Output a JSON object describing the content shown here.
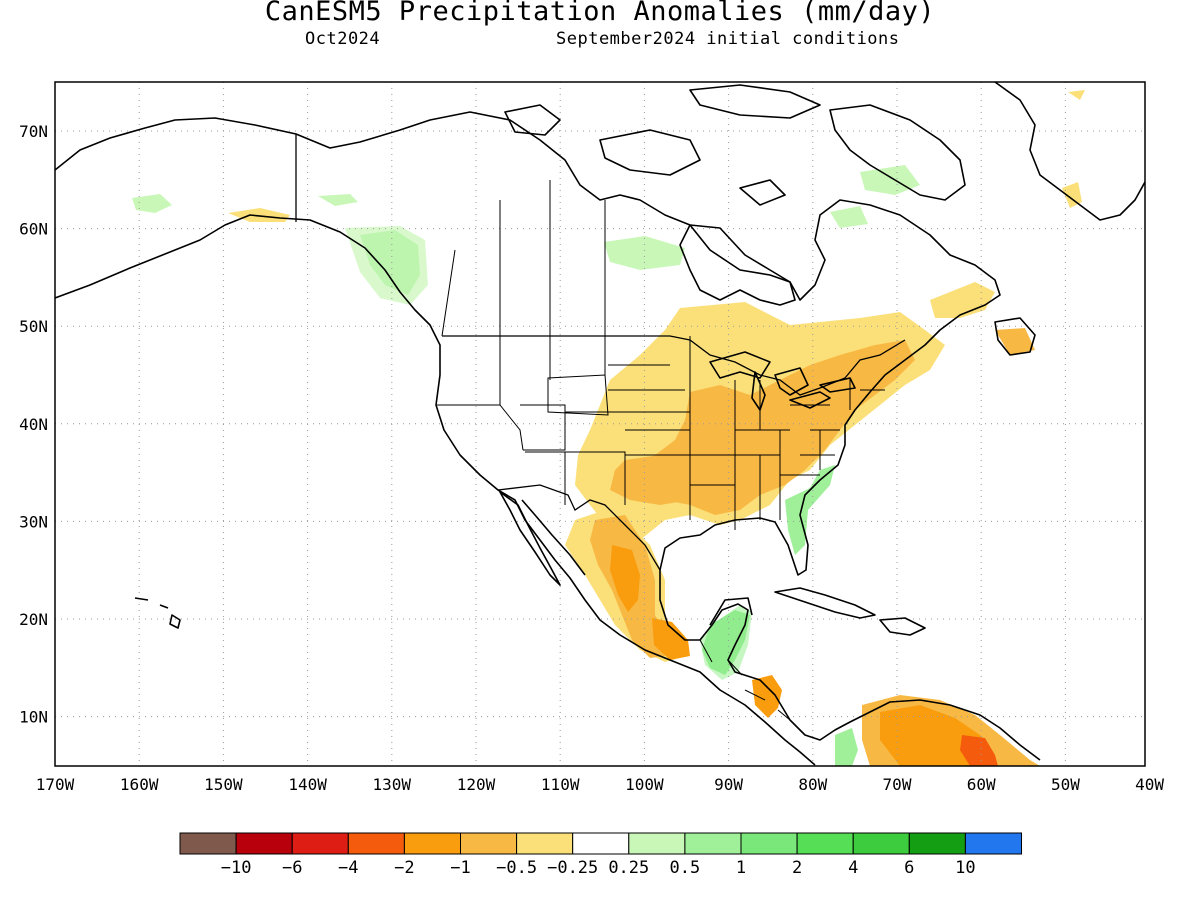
{
  "title": "CanESM5 Precipitation Anomalies (mm/day)",
  "subtitle_left": "Oct2024",
  "subtitle_right": "September2024 initial conditions",
  "axes": {
    "lat_ticks": [
      "70N",
      "60N",
      "50N",
      "40N",
      "30N",
      "20N",
      "10N"
    ],
    "lon_ticks": [
      "170W",
      "160W",
      "150W",
      "140W",
      "130W",
      "120W",
      "110W",
      "100W",
      "90W",
      "80W",
      "70W",
      "60W",
      "50W",
      "40W"
    ],
    "grid": "dotted"
  },
  "colorbar": {
    "colors": [
      "#7f5a4c",
      "#b7000c",
      "#de1d14",
      "#f55b0c",
      "#f99d0e",
      "#f8b944",
      "#fbe07a",
      "#ffffff",
      "#c9f7b8",
      "#a0f09a",
      "#79e779",
      "#56de56",
      "#3dcc3d",
      "#149e14",
      "#2277ee"
    ],
    "labels": [
      "−10",
      "−6",
      "−4",
      "−2",
      "−1",
      "−0.5",
      "−0.25",
      "0.25",
      "0.5",
      "1",
      "2",
      "4",
      "6",
      "10"
    ]
  },
  "anomaly_regions": [
    {
      "name": "central-us-dry",
      "level": "-0.5 to -0.25",
      "color": "#fbe07a"
    },
    {
      "name": "ohio-valley-dry",
      "level": "-1 to -0.5",
      "color": "#f8b944"
    },
    {
      "name": "mexico-dry",
      "level": "-1 to -0.5",
      "color": "#f8b944"
    },
    {
      "name": "mexico-core-dry",
      "level": "-2 to -1",
      "color": "#f99d0e"
    },
    {
      "name": "venezuela-dry",
      "level": "-2 to -1",
      "color": "#f99d0e"
    },
    {
      "name": "venezuela-core-dry",
      "level": "-4 to -2",
      "color": "#f55b0c"
    },
    {
      "name": "central-america-wet",
      "level": "1 to 2",
      "color": "#79e779"
    },
    {
      "name": "florida-wet",
      "level": "0.5 to 1",
      "color": "#a0f09a"
    },
    {
      "name": "bc-coast-wet",
      "level": "0.5 to 1",
      "color": "#a0f09a"
    },
    {
      "name": "alaska-wet",
      "level": "0.25 to 0.5",
      "color": "#c9f7b8"
    },
    {
      "name": "hudson-wet",
      "level": "0.25 to 0.5",
      "color": "#c9f7b8"
    },
    {
      "name": "greenland-east-dry",
      "level": "-0.5 to -0.25",
      "color": "#fbe07a"
    }
  ]
}
